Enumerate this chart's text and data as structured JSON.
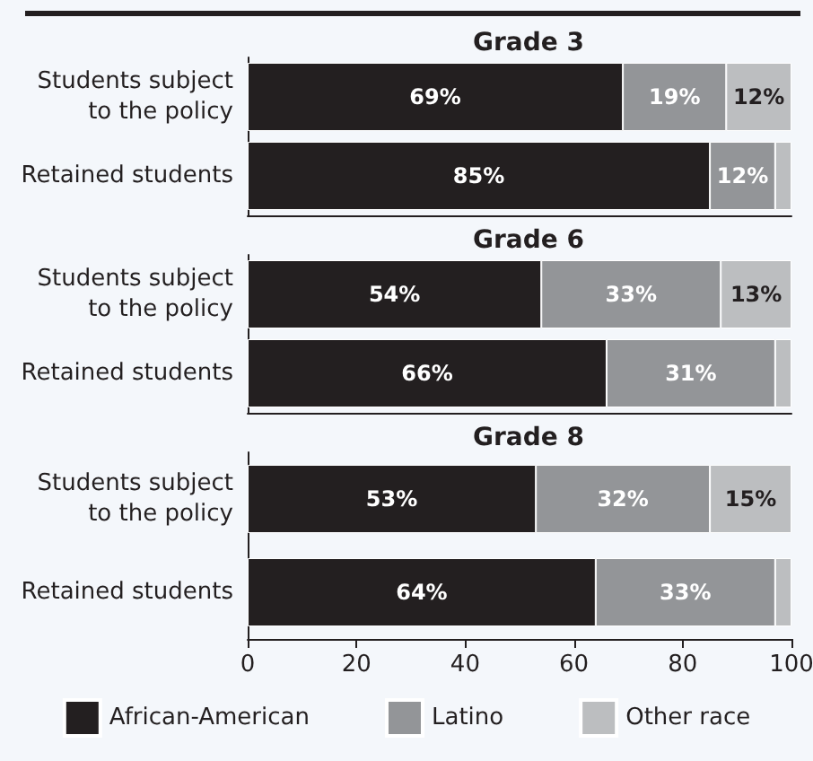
{
  "chart_data": [
    {
      "type": "bar",
      "orientation": "horizontal",
      "stacked": true,
      "title": "Grade 3",
      "categories": [
        "Students subject\nto the policy",
        "Retained students"
      ],
      "series": [
        {
          "color": "#231f20",
          "values": [
            69,
            85
          ],
          "value_labels": [
            "69%",
            "85%"
          ]
        },
        {
          "color": "#939598",
          "values": [
            19,
            12
          ],
          "value_labels": [
            "19%",
            "12%"
          ]
        },
        {
          "color": "#bcbec0",
          "values": [
            12,
            3
          ],
          "value_labels": [
            "12%",
            null
          ]
        }
      ],
      "xlim": [
        0,
        100
      ],
      "xticks": [
        0,
        20,
        40,
        60,
        80,
        100
      ],
      "tick_labels": "y",
      "grid": false,
      "legend": false
    },
    {
      "type": "bar",
      "orientation": "horizontal",
      "stacked": true,
      "title": "Grade 6",
      "categories": [
        "Students subject\nto the policy",
        "Retained students"
      ],
      "series": [
        {
          "color": "#231f20",
          "values": [
            54,
            66
          ],
          "value_labels": [
            "54%",
            "66%"
          ]
        },
        {
          "color": "#939598",
          "values": [
            33,
            31
          ],
          "value_labels": [
            "33%",
            "31%"
          ]
        },
        {
          "color": "#bcbec0",
          "values": [
            13,
            3
          ],
          "value_labels": [
            "13%",
            null
          ]
        }
      ],
      "xlim": [
        0,
        100
      ],
      "xticks": [
        0,
        20,
        40,
        60,
        80,
        100
      ],
      "tick_labels": "y",
      "grid": false,
      "legend": false
    },
    {
      "type": "bar",
      "orientation": "horizontal",
      "stacked": true,
      "title": "Grade 8",
      "categories": [
        "Students subject\nto the policy",
        "Retained students"
      ],
      "series": [
        {
          "name": "African-American",
          "color": "#231f20",
          "values": [
            53,
            64
          ],
          "value_labels": [
            "53%",
            "64%"
          ]
        },
        {
          "name": "Latino",
          "color": "#939598",
          "values": [
            32,
            33
          ],
          "value_labels": [
            "32%",
            "33%"
          ]
        },
        {
          "name": "Other race",
          "color": "#bcbec0",
          "values": [
            15,
            3
          ],
          "value_labels": [
            "15%",
            null
          ]
        }
      ],
      "xlim": [
        0,
        100
      ],
      "xticks": [
        0,
        20,
        40,
        60,
        80,
        100
      ],
      "grid": false,
      "legend": "bottom"
    }
  ]
}
